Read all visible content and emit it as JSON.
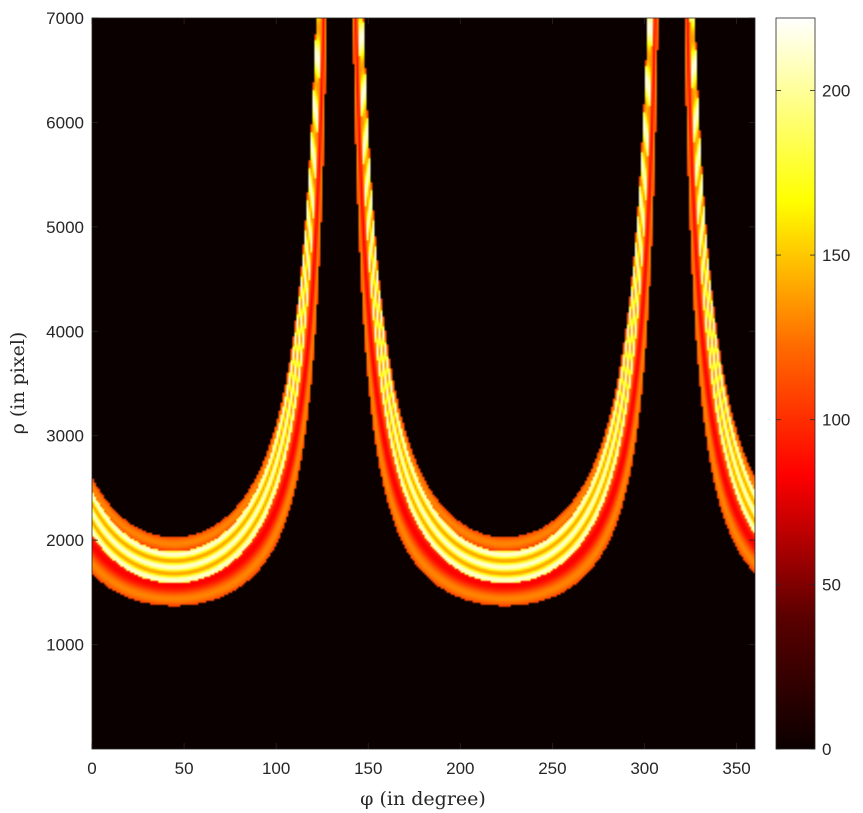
{
  "chart_data": {
    "type": "heatmap",
    "title": "",
    "xlabel": "φ (in degree)",
    "ylabel": "ρ (in pixel)",
    "xlim": [
      0,
      360
    ],
    "ylim": [
      0,
      7000
    ],
    "xticks": [
      0,
      50,
      100,
      150,
      200,
      250,
      300,
      350
    ],
    "yticks": [
      1000,
      2000,
      3000,
      4000,
      5000,
      6000,
      7000
    ],
    "colormap": "hot",
    "colorbar": {
      "range": [
        0,
        222
      ],
      "ticks": [
        0,
        50,
        100,
        150,
        200
      ]
    },
    "background_value": 0,
    "bands": [
      {
        "center_deg": 44.5,
        "rho_offset": 600,
        "rho_amp": 1100,
        "half_width_deg": 18,
        "peak_value": 130
      },
      {
        "center_deg": 44.5,
        "rho_offset": 440,
        "rho_amp": 1300,
        "half_width_deg": 7,
        "peak_value": 215
      },
      {
        "center_deg": 224.5,
        "rho_offset": 600,
        "rho_amp": 1100,
        "half_width_deg": 18,
        "peak_value": 130
      },
      {
        "center_deg": 224.5,
        "rho_offset": 440,
        "rho_amp": 1300,
        "half_width_deg": 7,
        "peak_value": 215
      }
    ]
  }
}
